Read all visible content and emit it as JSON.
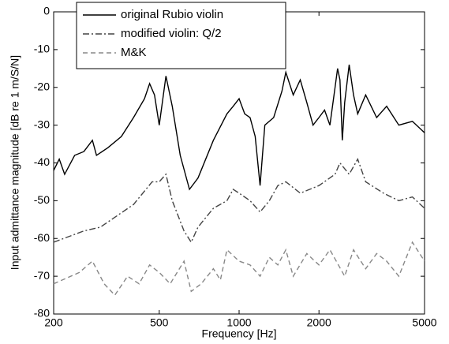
{
  "chart_data": {
    "type": "line",
    "xlabel": "Frequency [Hz]",
    "ylabel": "Input admittance magnitude [dB re 1 m/S/N]",
    "xscale": "log",
    "xlim": [
      200,
      5000
    ],
    "xticks": [
      200,
      500,
      1000,
      2000,
      5000
    ],
    "ylim": [
      -80,
      0
    ],
    "yticks": [
      -80,
      -70,
      -60,
      -50,
      -40,
      -30,
      -20,
      -10,
      0
    ],
    "legend": "upper left",
    "series": [
      {
        "name": "original Rubio violin",
        "color": "#000000",
        "dash": "solid",
        "x": [
          200,
          210,
          220,
          240,
          260,
          280,
          290,
          320,
          360,
          400,
          440,
          460,
          480,
          500,
          530,
          560,
          600,
          650,
          700,
          800,
          900,
          950,
          1000,
          1050,
          1100,
          1150,
          1200,
          1250,
          1350,
          1450,
          1500,
          1600,
          1700,
          1800,
          1900,
          2000,
          2100,
          2200,
          2300,
          2350,
          2400,
          2450,
          2500,
          2600,
          2700,
          2800,
          3000,
          3300,
          3600,
          4000,
          4500,
          5000
        ],
        "values": [
          -42,
          -39,
          -43,
          -38,
          -37,
          -34,
          -38,
          -36,
          -33,
          -28,
          -23,
          -19,
          -22,
          -30,
          -17,
          -25,
          -38,
          -47,
          -44,
          -34,
          -27,
          -25,
          -23,
          -27,
          -28,
          -33,
          -46,
          -30,
          -28,
          -21,
          -16,
          -22,
          -18,
          -24,
          -30,
          -28,
          -26,
          -30,
          -20,
          -15,
          -18,
          -34,
          -24,
          -14,
          -22,
          -27,
          -22,
          -28,
          -25,
          -30,
          -29,
          -32
        ]
      },
      {
        "name": "modified violin: Q/2",
        "color": "#444444",
        "dash": "dashdot",
        "x": [
          200,
          260,
          300,
          400,
          470,
          500,
          530,
          560,
          620,
          660,
          700,
          800,
          900,
          950,
          1000,
          1100,
          1200,
          1300,
          1400,
          1500,
          1700,
          2000,
          2300,
          2400,
          2600,
          2800,
          3000,
          3500,
          4000,
          4500,
          5000
        ],
        "values": [
          -61,
          -58,
          -57,
          -51,
          -45,
          -45,
          -43,
          -50,
          -58,
          -61,
          -57,
          -52,
          -50,
          -47,
          -48,
          -50,
          -53,
          -50,
          -46,
          -45,
          -48,
          -46,
          -43,
          -40,
          -43,
          -39,
          -45,
          -48,
          -50,
          -49,
          -52
        ]
      },
      {
        "name": "M&K",
        "color": "#888888",
        "dash": "dashed",
        "x": [
          200,
          250,
          280,
          310,
          340,
          380,
          420,
          460,
          500,
          550,
          620,
          660,
          720,
          800,
          850,
          900,
          1000,
          1100,
          1200,
          1300,
          1400,
          1500,
          1600,
          1800,
          2000,
          2200,
          2500,
          2700,
          3000,
          3300,
          3600,
          4000,
          4500,
          5000
        ],
        "values": [
          -72,
          -69,
          -66,
          -72,
          -75,
          -70,
          -72,
          -67,
          -69,
          -72,
          -66,
          -74,
          -72,
          -68,
          -71,
          -63,
          -66,
          -67,
          -70,
          -65,
          -67,
          -63,
          -70,
          -64,
          -67,
          -63,
          -70,
          -63,
          -68,
          -64,
          -66,
          -70,
          -61,
          -66
        ]
      }
    ]
  }
}
